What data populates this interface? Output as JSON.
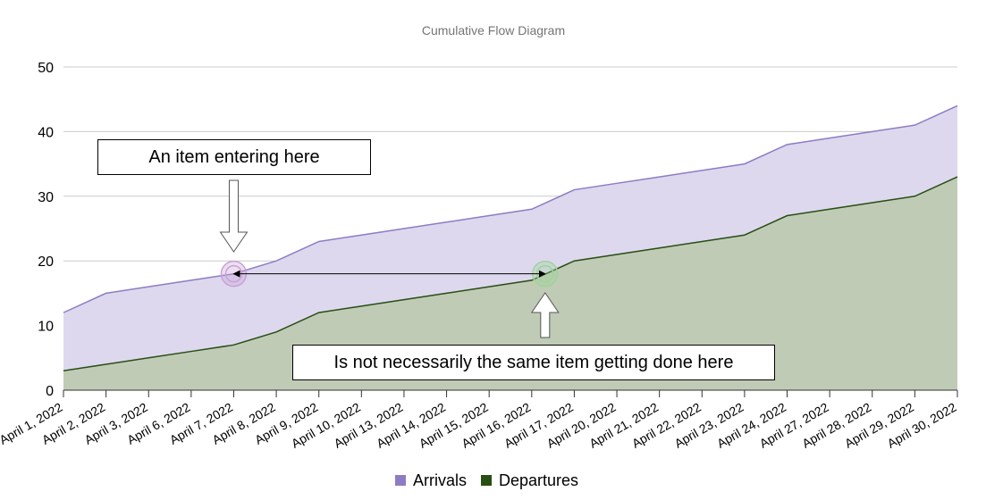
{
  "chart_data": {
    "type": "area",
    "title": "Cumulative Flow Diagram",
    "xlabel": "",
    "ylabel": "",
    "categories": [
      "April 1, 2022",
      "April 2, 2022",
      "April 3, 2022",
      "April 6, 2022",
      "April 7, 2022",
      "April 8, 2022",
      "April 9, 2022",
      "April 10, 2022",
      "April 13, 2022",
      "April 14, 2022",
      "April 15, 2022",
      "April 16, 2022",
      "April 17, 2022",
      "April 20, 2022",
      "April 21, 2022",
      "April 22, 2022",
      "April 23, 2022",
      "April 24, 2022",
      "April 27, 2022",
      "April 28, 2022",
      "April 29, 2022",
      "April 30, 2022"
    ],
    "series": [
      {
        "name": "Arrivals",
        "color": "#8e7cc3",
        "fill": "#ddd8ee",
        "values": [
          12,
          15,
          16,
          17,
          18,
          20,
          23,
          24,
          25,
          26,
          27,
          28,
          31,
          32,
          33,
          34,
          35,
          38,
          39,
          40,
          41,
          44
        ]
      },
      {
        "name": "Departures",
        "color": "#274e13",
        "fill": "#c0cbb6",
        "values": [
          3,
          4,
          5,
          6,
          7,
          9,
          12,
          13,
          14,
          15,
          16,
          17,
          20,
          21,
          22,
          23,
          24,
          27,
          28,
          29,
          30,
          33
        ]
      }
    ],
    "ylim": [
      0,
      50
    ],
    "yticks": [
      0,
      10,
      20,
      30,
      40,
      50
    ],
    "grid": true,
    "legend": "bottom",
    "annotations": [
      {
        "text": "An item entering here",
        "category": "April 7, 2022",
        "value": 18,
        "series": "Arrivals"
      },
      {
        "text": "Is not necessarily the same item getting done here",
        "category": "April 16, 2022",
        "value": 18,
        "series": "Departures"
      }
    ]
  }
}
